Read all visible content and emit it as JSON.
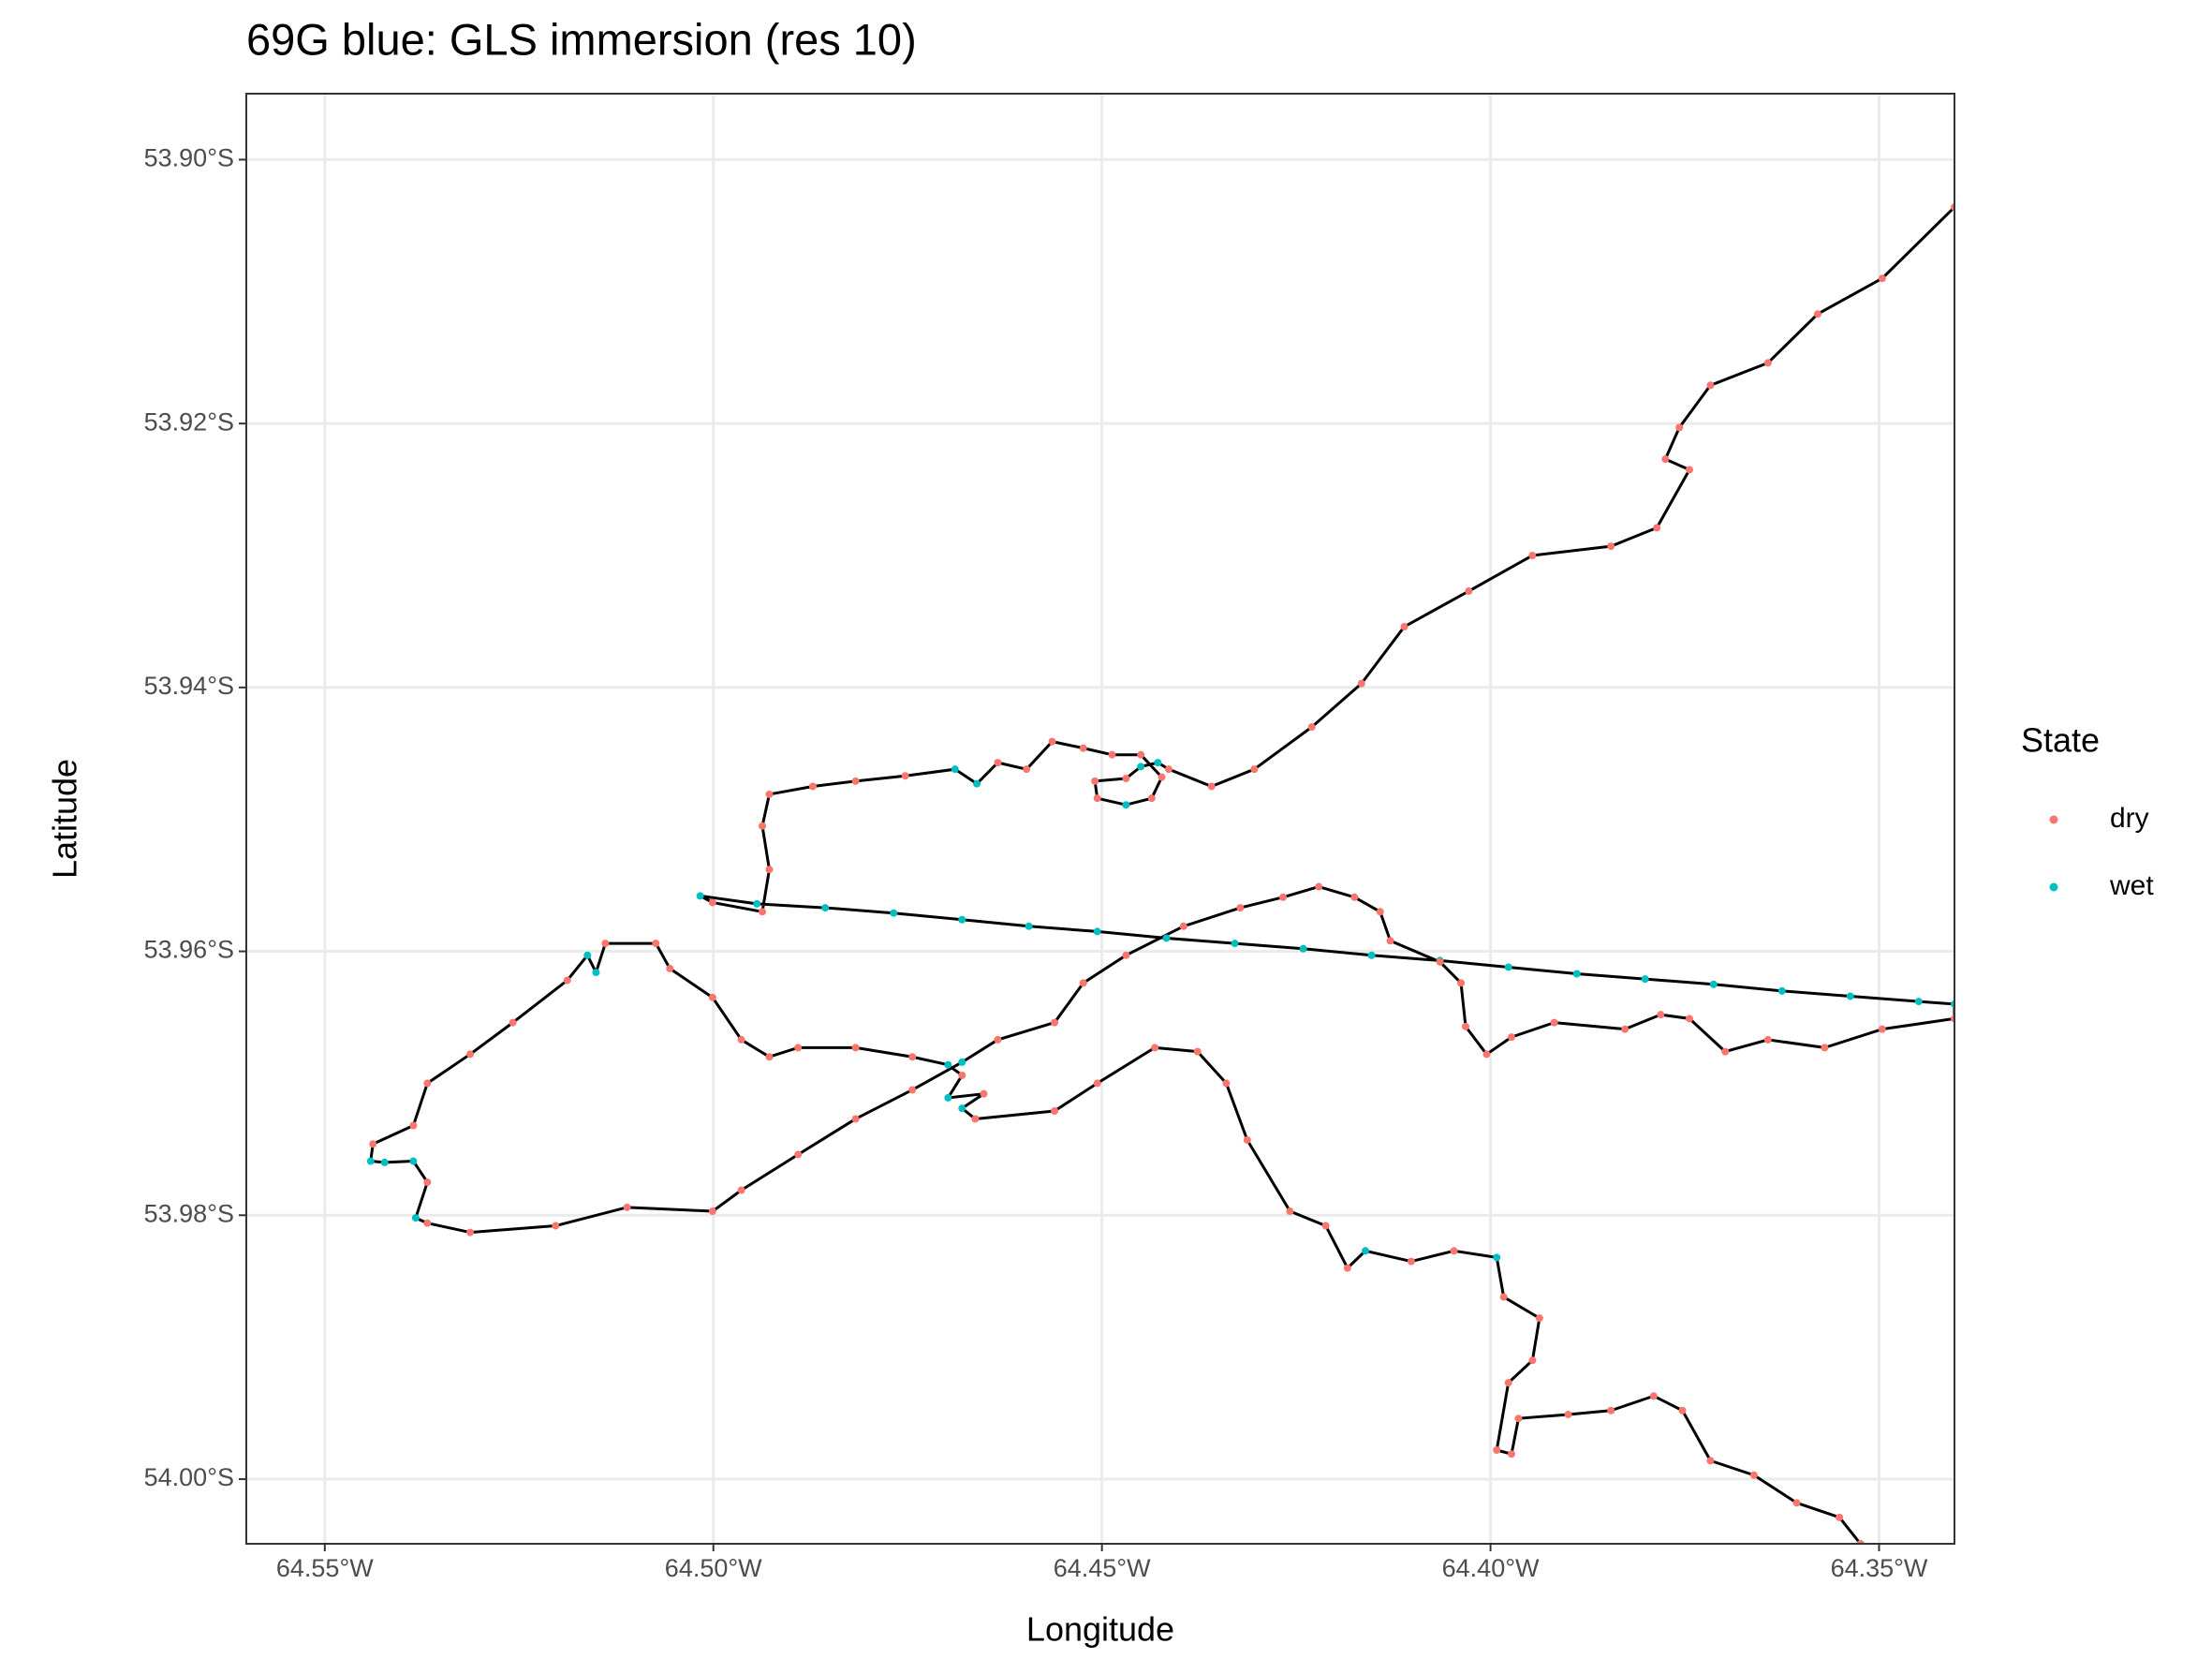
{
  "chart_data": {
    "type": "scatter",
    "title": "69G blue: GLS immersion (res 10)",
    "xlabel": "Longitude",
    "ylabel": "Latitude",
    "xlim": [
      -64.5601,
      -64.3403
    ],
    "ylim": [
      -54.0049,
      -53.895
    ],
    "xticks": [
      {
        "value": -64.55,
        "label": "64.55°W"
      },
      {
        "value": -64.5,
        "label": "64.50°W"
      },
      {
        "value": -64.45,
        "label": "64.45°W"
      },
      {
        "value": -64.4,
        "label": "64.40°W"
      },
      {
        "value": -64.35,
        "label": "64.35°W"
      }
    ],
    "yticks": [
      {
        "value": -53.9,
        "label": "53.90°S"
      },
      {
        "value": -53.92,
        "label": "53.92°S"
      },
      {
        "value": -53.94,
        "label": "53.94°S"
      },
      {
        "value": -53.96,
        "label": "53.96°S"
      },
      {
        "value": -53.98,
        "label": "53.98°S"
      },
      {
        "value": -54.0,
        "label": "54.00°S"
      }
    ],
    "grid": true,
    "path_color": "#000000",
    "legend": {
      "title": "State",
      "position": "right"
    },
    "series": [
      {
        "name": "dry",
        "color": "#F8766D"
      },
      {
        "name": "wet",
        "color": "#00BFC4"
      }
    ],
    "x": [
      -64.3403,
      -64.3496,
      -64.3579,
      -64.3643,
      -64.3717,
      -64.3757,
      -64.3775,
      -64.3744,
      -64.3786,
      -64.3845,
      -64.3946,
      -64.4028,
      -64.4111,
      -64.4166,
      -64.423,
      -64.4304,
      -64.4359,
      -64.4414,
      -64.4428,
      -64.445,
      -64.4469,
      -64.4509,
      -64.4506,
      -64.4469,
      -64.4436,
      -64.4423,
      -64.445,
      -64.4487,
      -64.4524,
      -64.4564,
      -64.4597,
      -64.4634,
      -64.4661,
      -64.4689,
      -64.4753,
      -64.4817,
      -64.4872,
      -64.4928,
      -64.4937,
      -64.4928,
      -64.4937,
      -64.5001,
      -64.5017,
      -64.4944,
      -64.4856,
      -64.4768,
      -64.468,
      -64.4594,
      -64.4506,
      -64.4417,
      -64.4329,
      -64.4241,
      -64.4153,
      -64.4065,
      -64.3977,
      -64.3889,
      -64.3801,
      -64.3713,
      -64.3625,
      -64.3537,
      -64.3449,
      -64.3403,
      -64.3403,
      -64.3496,
      -64.357,
      -64.3643,
      -64.3698,
      -64.3744,
      -64.3781,
      -64.3827,
      -64.3918,
      -64.3973,
      -64.4005,
      -64.4032,
      -64.4038,
      -64.4065,
      -64.4129,
      -64.4142,
      -64.4175,
      -64.4221,
      -64.4267,
      -64.4322,
      -64.4395,
      -64.4469,
      -64.4524,
      -64.4561,
      -64.4634,
      -64.468,
      -64.4744,
      -64.4817,
      -64.4891,
      -64.4964,
      -64.5001,
      -64.5111,
      -64.5203,
      -64.5313,
      -64.5368,
      -64.5383,
      -64.5368,
      -64.5386,
      -64.5423,
      -64.5441,
      -64.5438,
      -64.5386,
      -64.5368,
      -64.5313,
      -64.5258,
      -64.5188,
      -64.5162,
      -64.5151,
      -64.5139,
      -64.5074,
      -64.5056,
      -64.5001,
      -64.4964,
      -64.4928,
      -64.4891,
      -64.4817,
      -64.4744,
      -64.4698,
      -64.468,
      -64.4698,
      -64.4652,
      -64.468,
      -64.4663,
      -64.4561,
      -64.4506,
      -64.4432,
      -64.4377,
      -64.434,
      -64.4313,
      -64.4258,
      -64.4212,
      -64.4184,
      -64.4161,
      -64.4102,
      -64.4047,
      -64.3992,
      -64.3983,
      -64.3937,
      -64.3946,
      -64.3977,
      -64.3992,
      -64.3973,
      -64.3964,
      -64.39,
      -64.3845,
      -64.379,
      -64.3753,
      -64.3717,
      -64.3661,
      -64.3606,
      -64.3551,
      -64.3524
    ],
    "y": [
      -53.9036,
      -53.909,
      -53.9117,
      -53.9154,
      -53.9171,
      -53.9203,
      -53.9227,
      -53.9235,
      -53.9279,
      -53.9293,
      -53.93,
      -53.9327,
      -53.9354,
      -53.9397,
      -53.943,
      -53.9462,
      -53.9475,
      -53.9462,
      -53.9457,
      -53.946,
      -53.9469,
      -53.9471,
      -53.9484,
      -53.9489,
      -53.9484,
      -53.9468,
      -53.9451,
      -53.9451,
      -53.9446,
      -53.9441,
      -53.9462,
      -53.9457,
      -53.9473,
      -53.9462,
      -53.9467,
      -53.9471,
      -53.9475,
      -53.9481,
      -53.9505,
      -53.9538,
      -53.957,
      -53.9563,
      -53.9558,
      -53.9564,
      -53.9567,
      -53.9571,
      -53.9576,
      -53.9581,
      -53.9585,
      -53.959,
      -53.9594,
      -53.9598,
      -53.9603,
      -53.9607,
      -53.9612,
      -53.9617,
      -53.9621,
      -53.9625,
      -53.963,
      -53.9634,
      -53.9638,
      -53.964,
      -53.9651,
      -53.9659,
      -53.9673,
      -53.9667,
      -53.9676,
      -53.9651,
      -53.9648,
      -53.9659,
      -53.9654,
      -53.9665,
      -53.9678,
      -53.9657,
      -53.9624,
      -53.9608,
      -53.9592,
      -53.957,
      -53.9559,
      -53.9551,
      -53.9559,
      -53.9567,
      -53.9581,
      -53.9603,
      -53.9624,
      -53.9654,
      -53.9667,
      -53.9684,
      -53.9705,
      -53.9727,
      -53.9754,
      -53.9781,
      -53.9797,
      -53.9794,
      -53.9808,
      -53.9813,
      -53.9806,
      -53.9802,
      -53.9775,
      -53.9759,
      -53.976,
      -53.9759,
      -53.9746,
      -53.9732,
      -53.97,
      -53.9678,
      -53.9654,
      -53.9622,
      -53.9603,
      -53.9616,
      -53.9594,
      -53.9594,
      -53.9613,
      -53.9635,
      -53.9667,
      -53.968,
      -53.9673,
      -53.9673,
      -53.968,
      -53.9686,
      -53.9694,
      -53.9711,
      -53.9708,
      -53.9719,
      -53.9727,
      -53.9721,
      -53.97,
      -53.9673,
      -53.9676,
      -53.97,
      -53.9743,
      -53.9797,
      -53.9808,
      -53.984,
      -53.9827,
      -53.9835,
      -53.9827,
      -53.9832,
      -53.9862,
      -53.9878,
      -53.991,
      -53.9927,
      -53.9978,
      -53.9981,
      -53.9954,
      -53.9951,
      -53.9948,
      -53.9937,
      -53.9948,
      -53.9986,
      -53.9997,
      -54.0018,
      -54.0029,
      -54.0049
    ],
    "state": [
      "dry",
      "dry",
      "dry",
      "dry",
      "dry",
      "dry",
      "dry",
      "dry",
      "dry",
      "dry",
      "dry",
      "dry",
      "dry",
      "dry",
      "dry",
      "dry",
      "dry",
      "dry",
      "wet",
      "wet",
      "dry",
      "dry",
      "dry",
      "wet",
      "dry",
      "dry",
      "dry",
      "dry",
      "dry",
      "dry",
      "dry",
      "dry",
      "wet",
      "wet",
      "dry",
      "dry",
      "dry",
      "dry",
      "dry",
      "dry",
      "dry",
      "dry",
      "wet",
      "wet",
      "wet",
      "wet",
      "wet",
      "wet",
      "wet",
      "wet",
      "wet",
      "wet",
      "wet",
      "wet",
      "wet",
      "wet",
      "wet",
      "wet",
      "wet",
      "wet",
      "wet",
      "wet",
      "dry",
      "dry",
      "dry",
      "dry",
      "dry",
      "dry",
      "dry",
      "dry",
      "dry",
      "dry",
      "dry",
      "dry",
      "dry",
      "dry",
      "dry",
      "dry",
      "dry",
      "dry",
      "dry",
      "dry",
      "dry",
      "dry",
      "dry",
      "dry",
      "dry",
      "wet",
      "dry",
      "dry",
      "dry",
      "dry",
      "dry",
      "dry",
      "dry",
      "dry",
      "dry",
      "wet",
      "dry",
      "wet",
      "wet",
      "wet",
      "dry",
      "dry",
      "dry",
      "dry",
      "dry",
      "dry",
      "wet",
      "wet",
      "dry",
      "dry",
      "dry",
      "dry",
      "dry",
      "dry",
      "dry",
      "dry",
      "dry",
      "wet",
      "dry",
      "wet",
      "dry",
      "wet",
      "dry",
      "dry",
      "dry",
      "dry",
      "dry",
      "dry",
      "dry",
      "dry",
      "dry",
      "dry",
      "wet",
      "dry",
      "dry",
      "wet",
      "dry",
      "dry",
      "dry",
      "dry",
      "dry",
      "dry",
      "dry",
      "dry",
      "dry",
      "dry",
      "dry",
      "dry",
      "dry",
      "dry",
      "dry",
      "dry",
      "dry"
    ]
  }
}
